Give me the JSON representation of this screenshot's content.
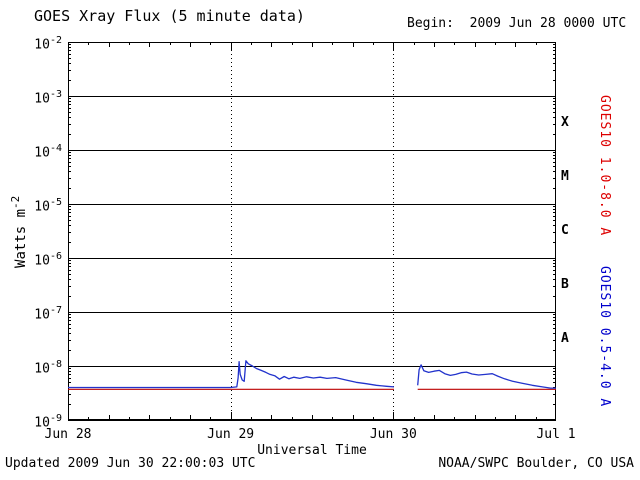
{
  "header": {
    "title": "GOES Xray Flux (5 minute data)",
    "begin_label": "Begin:  2009 Jun 28 0000 UTC"
  },
  "footer": {
    "updated": "Updated 2009 Jun 30 22:00:03 UTC",
    "source": "NOAA/SWPC Boulder, CO USA"
  },
  "colors": {
    "long_channel": "#cc0000",
    "short_channel": "#2233cc",
    "long_label": "#dd0000",
    "short_label": "#0000cc",
    "axis": "#000000"
  },
  "chart_data": {
    "type": "line",
    "title": "GOES Xray Flux (5 minute data)",
    "xlabel": "Universal Time",
    "ylabel": "Watts m^-2",
    "ylabel_base": "Watts m",
    "ylabel_exp": "-2",
    "y_scale": "log",
    "ylim": [
      1e-09,
      0.01
    ],
    "y_tick_exponents": [
      -2,
      -3,
      -4,
      -5,
      -6,
      -7,
      -8,
      -9
    ],
    "xlim_hours": [
      0,
      72
    ],
    "x_start": "2009 Jun 28 0000 UTC",
    "x_tick_hours": [
      0,
      24,
      48,
      72
    ],
    "x_tick_labels": [
      "Jun 28",
      "Jun 29",
      "Jun 30",
      "Jul 1"
    ],
    "grid": {
      "v_dotted_line_hours": [
        24,
        48
      ],
      "h_solid_lines": "every decade"
    },
    "flare_classes": [
      {
        "label": "X",
        "exponent_band": [
          -4,
          -3
        ]
      },
      {
        "label": "M",
        "exponent_band": [
          -5,
          -4
        ]
      },
      {
        "label": "C",
        "exponent_band": [
          -6,
          -5
        ]
      },
      {
        "label": "B",
        "exponent_band": [
          -7,
          -6
        ]
      },
      {
        "label": "A",
        "exponent_band": [
          -8,
          -7
        ]
      }
    ],
    "right_axis_labels": [
      {
        "text": "GOES10 1.0-8.0 A",
        "color": "#dd0000"
      },
      {
        "text": "GOES10 0.5-4.0 A",
        "color": "#0000cc"
      }
    ],
    "series": [
      {
        "name": "GOES10 1.0-8.0 A",
        "color": "#bb0000",
        "width": 1.2,
        "segments": [
          [
            [
              0,
              3.7e-09
            ],
            [
              48.1,
              3.7e-09
            ]
          ],
          [
            [
              51.6,
              3.7e-09
            ],
            [
              72,
              3.7e-09
            ]
          ]
        ]
      },
      {
        "name": "GOES10 0.5-4.0 A",
        "color": "#2233cc",
        "width": 1.3,
        "segments": [
          [
            [
              0,
              4e-09
            ],
            [
              6,
              4e-09
            ],
            [
              12,
              4e-09
            ],
            [
              18,
              4e-09
            ],
            [
              24.0,
              4e-09
            ],
            [
              24.9,
              4.1e-09
            ],
            [
              25.1,
              6e-09
            ],
            [
              25.25,
              1.2e-08
            ],
            [
              25.4,
              7e-09
            ],
            [
              25.7,
              5.5e-09
            ],
            [
              26.0,
              5.2e-09
            ],
            [
              26.25,
              1.25e-08
            ],
            [
              26.6,
              1.1e-08
            ],
            [
              27.2,
              1e-08
            ],
            [
              27.8,
              9e-09
            ],
            [
              28.5,
              8.3e-09
            ],
            [
              29.2,
              7.6e-09
            ],
            [
              29.8,
              7e-09
            ],
            [
              30.5,
              6.6e-09
            ],
            [
              31.2,
              5.7e-09
            ],
            [
              31.9,
              6.4e-09
            ],
            [
              32.6,
              5.8e-09
            ],
            [
              33.3,
              6.2e-09
            ],
            [
              34.2,
              5.9e-09
            ],
            [
              35.2,
              6.3e-09
            ],
            [
              36.2,
              6e-09
            ],
            [
              37.2,
              6.2e-09
            ],
            [
              38.2,
              5.9e-09
            ],
            [
              39.5,
              6.1e-09
            ],
            [
              41.0,
              5.5e-09
            ],
            [
              42.5,
              5e-09
            ],
            [
              44.0,
              4.7e-09
            ],
            [
              45.5,
              4.4e-09
            ],
            [
              47.0,
              4.2e-09
            ],
            [
              48.1,
              4.1e-09
            ]
          ],
          [
            [
              51.6,
              4.4e-09
            ],
            [
              51.8,
              8.5e-09
            ],
            [
              52.1,
              1.05e-08
            ],
            [
              52.5,
              8.2e-09
            ],
            [
              53.2,
              7.6e-09
            ],
            [
              54.0,
              8e-09
            ],
            [
              54.8,
              8.3e-09
            ],
            [
              55.6,
              7.2e-09
            ],
            [
              56.4,
              6.7e-09
            ],
            [
              57.2,
              7e-09
            ],
            [
              58.0,
              7.5e-09
            ],
            [
              58.8,
              7.7e-09
            ],
            [
              59.6,
              7.1e-09
            ],
            [
              60.6,
              6.8e-09
            ],
            [
              61.6,
              7e-09
            ],
            [
              62.6,
              7.2e-09
            ],
            [
              63.4,
              6.5e-09
            ],
            [
              64.4,
              5.8e-09
            ],
            [
              65.6,
              5.2e-09
            ],
            [
              67.0,
              4.8e-09
            ],
            [
              68.5,
              4.4e-09
            ],
            [
              70.0,
              4.1e-09
            ],
            [
              71.2,
              3.9e-09
            ],
            [
              72,
              3.9e-09
            ]
          ]
        ]
      }
    ]
  }
}
